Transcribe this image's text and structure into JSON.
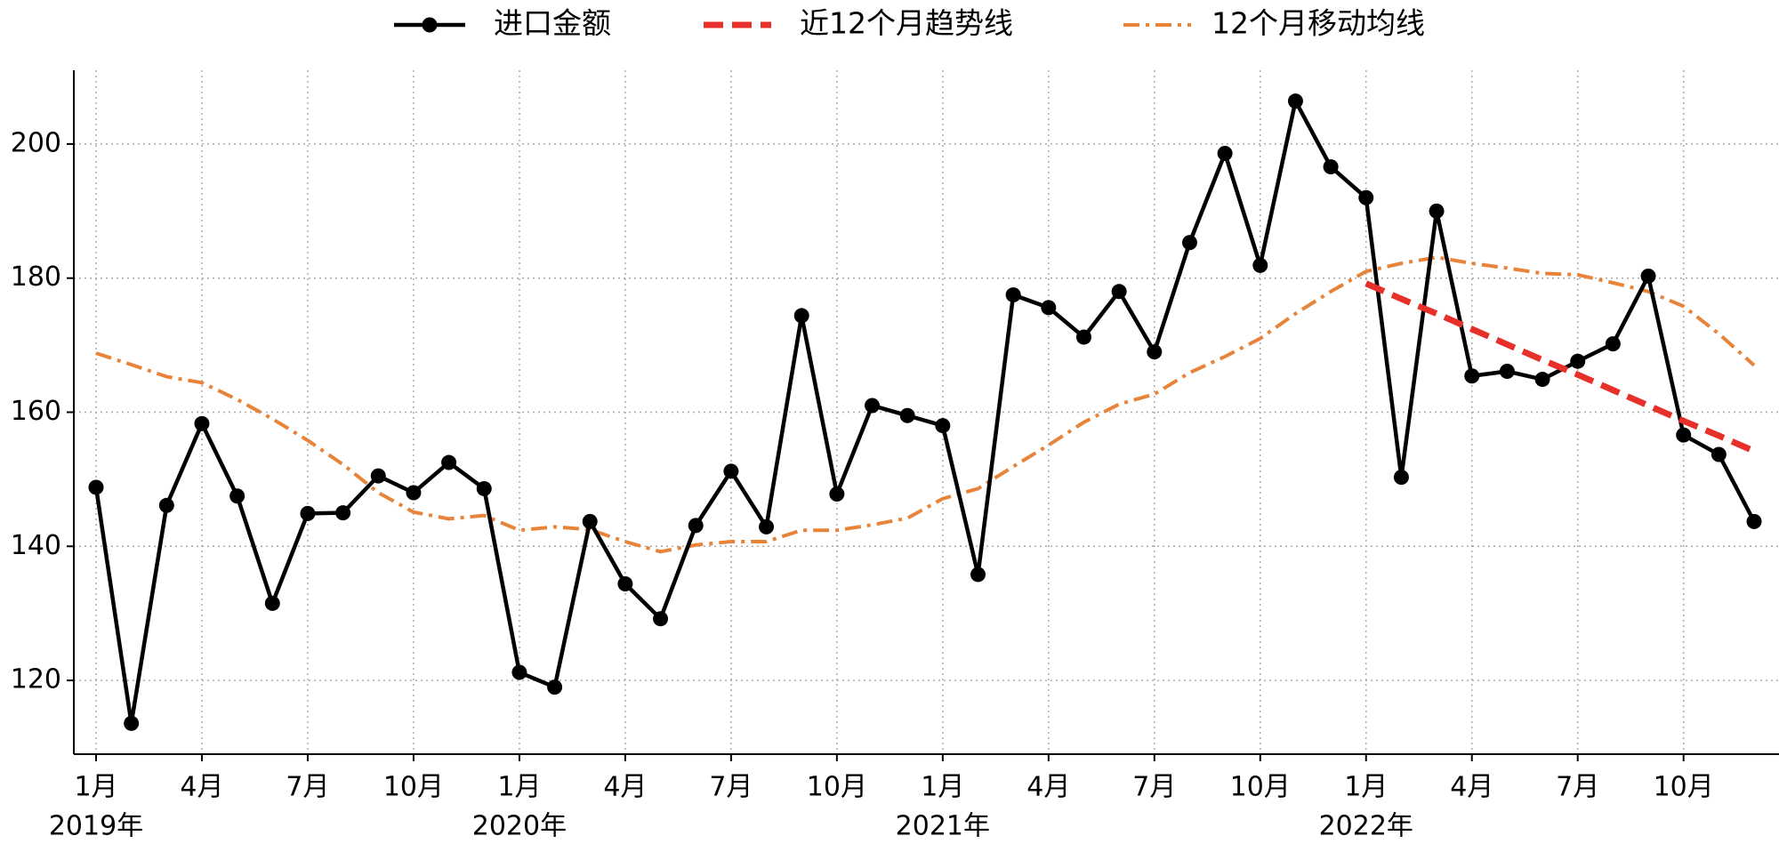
{
  "chart_data": {
    "type": "line",
    "categories": [
      "1月",
      null,
      null,
      "4月",
      null,
      null,
      "7月",
      null,
      null,
      "10月",
      null,
      null,
      "1月",
      null,
      null,
      "4月",
      null,
      null,
      "7月",
      null,
      null,
      "10月",
      null,
      null,
      "1月",
      null,
      null,
      "4月",
      null,
      null,
      "7月",
      null,
      null,
      "10月",
      null,
      null,
      "1月",
      null,
      null,
      "4月",
      null,
      null,
      "7月",
      null,
      null,
      "10月",
      null,
      null
    ],
    "year_labels": [
      "2019年",
      "2020年",
      "2021年",
      "2022年"
    ],
    "series": [
      {
        "name": "进口金额",
        "color": "#000000",
        "linestyle": "solid",
        "marker": "o",
        "values": [
          148.8,
          113.6,
          146.1,
          158.3,
          147.5,
          131.5,
          144.9,
          145.0,
          150.5,
          148.0,
          152.5,
          148.6,
          121.2,
          119.0,
          143.7,
          134.4,
          129.2,
          143.1,
          151.2,
          142.9,
          174.4,
          147.8,
          161.0,
          159.5,
          158.0,
          135.8,
          177.5,
          175.6,
          171.2,
          178.0,
          169.0,
          185.3,
          198.6,
          181.9,
          206.4,
          196.6,
          192.0,
          150.3,
          190.0,
          165.4,
          166.1,
          164.9,
          167.6,
          170.2,
          180.3,
          156.6,
          153.7,
          143.7
        ]
      },
      {
        "name": "近12个月趋势线",
        "color": "#e8302a",
        "linestyle": "dashed",
        "values": [
          null,
          null,
          null,
          null,
          null,
          null,
          null,
          null,
          null,
          null,
          null,
          null,
          null,
          null,
          null,
          null,
          null,
          null,
          null,
          null,
          null,
          null,
          null,
          null,
          null,
          null,
          null,
          null,
          null,
          null,
          null,
          null,
          null,
          null,
          null,
          null,
          179.2,
          176.9,
          174.7,
          172.4,
          170.1,
          167.8,
          165.6,
          163.3,
          161.0,
          158.7,
          156.5,
          154.2
        ]
      },
      {
        "name": "12个月移动均线",
        "color": "#e8843a",
        "linestyle": "dashdot",
        "values": [
          168.8,
          167.1,
          165.3,
          164.4,
          161.9,
          159.0,
          155.8,
          152.2,
          148.0,
          145.1,
          144.1,
          144.6,
          142.4,
          142.9,
          142.5,
          140.7,
          139.2,
          140.2,
          140.7,
          140.7,
          142.4,
          142.4,
          143.2,
          144.2,
          147.1,
          148.6,
          151.9,
          155.1,
          158.5,
          161.2,
          162.7,
          165.9,
          168.3,
          171.0,
          174.7,
          178.0,
          181.0,
          182.2,
          183.1,
          182.2,
          181.5,
          180.7,
          180.5,
          179.3,
          178.0,
          175.8,
          171.7,
          167.0
        ]
      }
    ],
    "ylim": [
      109,
      211
    ],
    "yticks": [
      120,
      140,
      160,
      180,
      200
    ],
    "grid": true,
    "legend": "top"
  }
}
